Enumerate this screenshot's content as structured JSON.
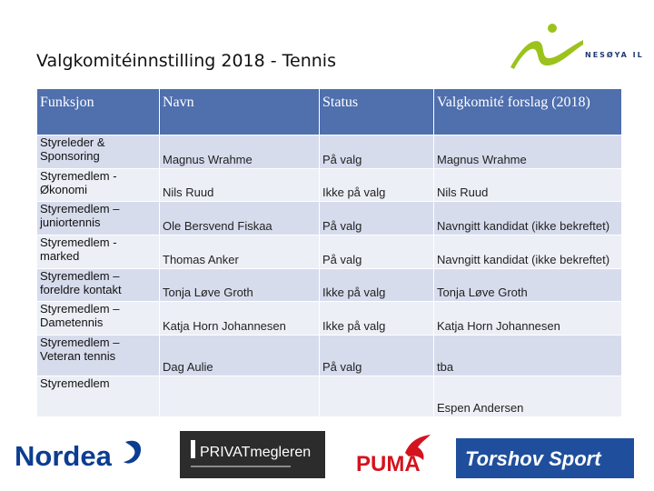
{
  "slide": {
    "title": "Valgkomitéinnstilling 2018 - Tennis",
    "club_logo_text": "NESØYA IL"
  },
  "table": {
    "headers": [
      "Funksjon",
      "Navn",
      "Status",
      "Valgkomité forslag (2018)"
    ],
    "rows": [
      {
        "funksjon": "Styreleder & Sponsoring",
        "navn": "Magnus Wrahme",
        "status": "På valg",
        "forslag": "Magnus Wrahme"
      },
      {
        "funksjon": "Styremedlem - Økonomi",
        "navn": "Nils Ruud",
        "status": "Ikke på valg",
        "forslag": "Nils Ruud"
      },
      {
        "funksjon": "Styremedlem – juniortennis",
        "navn": "Ole Bersvend Fiskaa",
        "status": "På valg",
        "forslag": "Navngitt kandidat (ikke bekreftet)"
      },
      {
        "funksjon": "Styremedlem - marked",
        "navn": "Thomas Anker",
        "status": "På valg",
        "forslag": "Navngitt kandidat (ikke bekreftet)"
      },
      {
        "funksjon": "Styremedlem – foreldre kontakt",
        "navn": "Tonja Løve Groth",
        "status": "Ikke på valg",
        "forslag": "Tonja Løve Groth"
      },
      {
        "funksjon": "Styremedlem – Dametennis",
        "navn": "Katja Horn Johannesen",
        "status": "Ikke på valg",
        "forslag": "Katja Horn Johannesen"
      },
      {
        "funksjon": "Styremedlem – Veteran tennis",
        "navn": "Dag Aulie",
        "status": "På valg",
        "forslag": "tba"
      },
      {
        "funksjon": "Styremedlem",
        "navn": "",
        "status": "",
        "forslag": "Espen Andersen"
      }
    ]
  },
  "sponsors": {
    "nordea": "Nordea",
    "privatmegleren": "PRIVATmegleren",
    "puma": "PUMA",
    "torshov": "Torshov Sport"
  },
  "colors": {
    "header": "#4f6fad",
    "row_odd": "#d7dced",
    "row_even": "#ecefF6",
    "club_green": "#9bc31c",
    "club_blue": "#1f3a6e"
  }
}
